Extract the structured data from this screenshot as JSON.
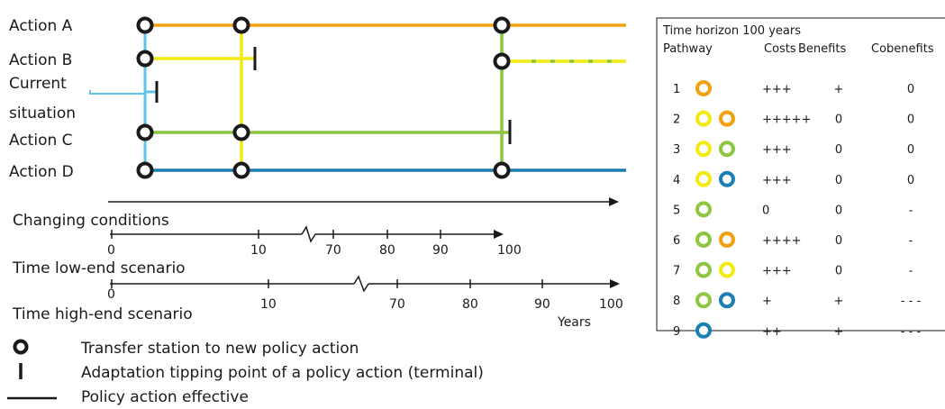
{
  "colors": {
    "action_a": "#f2a10e",
    "action_b": "#f2ea12",
    "action_c": "#8ec641",
    "action_d": "#1b7fb3",
    "current": "#5fc4ea",
    "ink": "#1a1a1a"
  },
  "labels": {
    "action_a": "Action A",
    "action_b": "Action B",
    "current_line1": "Current",
    "current_line2": "situation",
    "action_c": "Action C",
    "action_d": "Action D",
    "changing_conditions": "Changing conditions",
    "time_low": "Time low-end scenario",
    "time_high": "Time high-end scenario",
    "years": "Years"
  },
  "axis_low": {
    "ticks": [
      "0",
      "10",
      "70",
      "80",
      "90",
      "100"
    ]
  },
  "axis_high": {
    "ticks": [
      "0",
      "10",
      "70",
      "80",
      "90",
      "100"
    ]
  },
  "table": {
    "title": "Time horizon 100 years",
    "headers": {
      "pathway": "Pathway",
      "costs": "Costs",
      "benefits": "Benefits",
      "cobenefits": "Cobenefits"
    },
    "rows": [
      {
        "num": "1",
        "circles": [
          "A"
        ],
        "costs": "+++",
        "benefits": "+",
        "cobenefits": "0"
      },
      {
        "num": "2",
        "circles": [
          "B",
          "A"
        ],
        "costs": "+++++",
        "benefits": "0",
        "cobenefits": "0"
      },
      {
        "num": "3",
        "circles": [
          "B",
          "C"
        ],
        "costs": "+++",
        "benefits": "0",
        "cobenefits": "0"
      },
      {
        "num": "4",
        "circles": [
          "B",
          "D"
        ],
        "costs": "+++",
        "benefits": "0",
        "cobenefits": "0"
      },
      {
        "num": "5",
        "circles": [
          "C"
        ],
        "costs": "0",
        "benefits": "0",
        "cobenefits": "-"
      },
      {
        "num": "6",
        "circles": [
          "C",
          "A"
        ],
        "costs": "++++",
        "benefits": "0",
        "cobenefits": "-"
      },
      {
        "num": "7",
        "circles": [
          "C",
          "B"
        ],
        "costs": "+++",
        "benefits": "0",
        "cobenefits": "-"
      },
      {
        "num": "8",
        "circles": [
          "C",
          "D"
        ],
        "costs": "+",
        "benefits": "+",
        "cobenefits": "- - -"
      },
      {
        "num": "9",
        "circles": [
          "D"
        ],
        "costs": "++",
        "benefits": "+",
        "cobenefits": "- - -"
      }
    ]
  },
  "legend": {
    "transfer": "Transfer station to new policy action",
    "tipping": "Adaptation tipping point of a policy action (terminal)",
    "effective": "Policy action effective"
  }
}
